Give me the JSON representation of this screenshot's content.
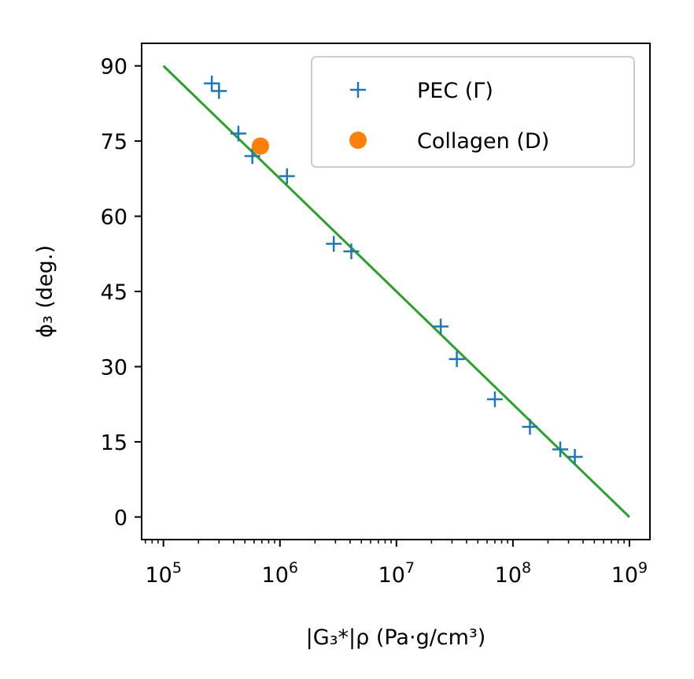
{
  "chart_data": {
    "type": "scatter",
    "title": "",
    "xlabel": "|G₃*|ρ (Pa·g/cm³)",
    "ylabel": "ϕ₃ (deg.)",
    "xscale": "log",
    "xlim": [
      65000,
      1500000000
    ],
    "ylim": [
      -4.5,
      94.5
    ],
    "x_ticks": [
      {
        "value": 100000,
        "base": "10",
        "exp": "5"
      },
      {
        "value": 1000000,
        "base": "10",
        "exp": "6"
      },
      {
        "value": 10000000,
        "base": "10",
        "exp": "7"
      },
      {
        "value": 100000000,
        "base": "10",
        "exp": "8"
      },
      {
        "value": 1000000000,
        "base": "10",
        "exp": "9"
      }
    ],
    "y_ticks": [
      "0",
      "15",
      "30",
      "45",
      "60",
      "75",
      "90"
    ],
    "legend_position": "top-right",
    "series": [
      {
        "name": "PEC (Γ)",
        "marker": "plus",
        "color": "#1f77b4",
        "x": [
          260000,
          300000,
          440000,
          580000,
          1150000,
          2900000,
          4100000,
          24000000,
          33000000,
          70000000,
          140000000,
          255000000,
          340000000
        ],
        "y": [
          86.5,
          85,
          76.5,
          72,
          68,
          54.5,
          53,
          38,
          31.5,
          23.5,
          18,
          13.5,
          12
        ]
      },
      {
        "name": "Collagen (D)",
        "marker": "circle",
        "color": "#ff7f0e",
        "x": [
          680000
        ],
        "y": [
          74
        ]
      }
    ],
    "fit_line": {
      "name": "fit",
      "color": "#2ca02c",
      "x": [
        100000,
        1000000000
      ],
      "y": [
        90,
        0
      ]
    }
  }
}
